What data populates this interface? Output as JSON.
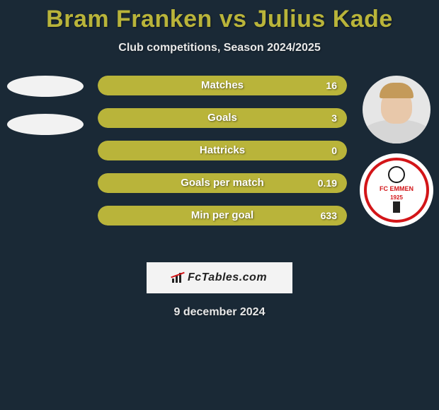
{
  "title": "Bram Franken vs Julius Kade",
  "subtitle": "Club competitions, Season 2024/2025",
  "date": "9 december 2024",
  "watermark": "FcTables.com",
  "colors": {
    "background": "#1a2936",
    "accent": "#b9b43a",
    "bar_fill": "#b9b43a",
    "bar_track": "#3a4550",
    "text": "#e8e8e8",
    "logo_red": "#d31518"
  },
  "bars": [
    {
      "label": "Matches",
      "value": "16",
      "fill_pct": 100
    },
    {
      "label": "Goals",
      "value": "3",
      "fill_pct": 100
    },
    {
      "label": "Hattricks",
      "value": "0",
      "fill_pct": 100
    },
    {
      "label": "Goals per match",
      "value": "0.19",
      "fill_pct": 100
    },
    {
      "label": "Min per goal",
      "value": "633",
      "fill_pct": 100
    }
  ],
  "right_player": {
    "club": "FC EMMEN",
    "club_year": "1925"
  }
}
